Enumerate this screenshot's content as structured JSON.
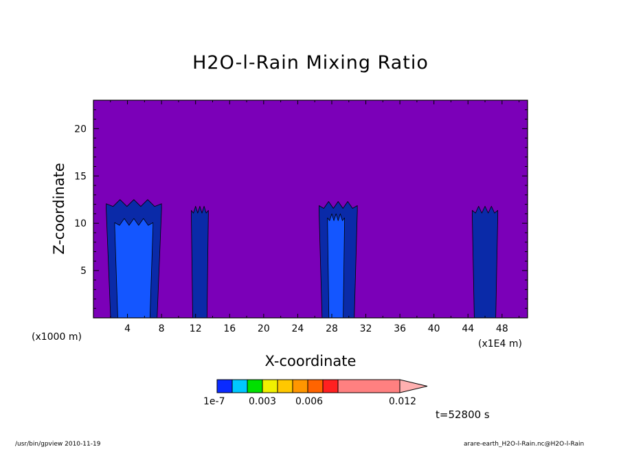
{
  "chart_data": {
    "type": "heatmap",
    "title": "H2O-l-Rain Mixing Ratio",
    "xlabel": "X-coordinate",
    "ylabel": "Z-coordinate",
    "x_unit_left": "(x1000 m)",
    "x_unit_right": "(x1E4 m)",
    "xlim": [
      0,
      51
    ],
    "ylim": [
      0,
      23
    ],
    "xticks": [
      "4",
      "8",
      "12",
      "16",
      "20",
      "24",
      "28",
      "32",
      "36",
      "40",
      "44",
      "48"
    ],
    "xtick_values": [
      4,
      8,
      12,
      16,
      20,
      24,
      28,
      32,
      36,
      40,
      44,
      48
    ],
    "yticks": [
      "5",
      "10",
      "15",
      "20"
    ],
    "ytick_values": [
      5,
      10,
      15,
      20
    ],
    "background_color": "#7b00b8",
    "levels": [
      {
        "min": "1e-7",
        "color": "#0a2aa8"
      },
      {
        "min": "0.003",
        "color": "#1456ff"
      }
    ],
    "cells": [
      {
        "x_range": [
          1.5,
          8
        ],
        "z_top": 12.5,
        "intensity": 1
      },
      {
        "x_range": [
          2.5,
          7
        ],
        "z_top": 10.5,
        "intensity": 2
      },
      {
        "x_range": [
          11.5,
          13.5
        ],
        "z_top": 11.8,
        "intensity": 1
      },
      {
        "x_range": [
          26.5,
          31
        ],
        "z_top": 12.3,
        "intensity": 1
      },
      {
        "x_range": [
          27.5,
          29.5
        ],
        "z_top": 11.0,
        "intensity": 2
      },
      {
        "x_range": [
          44.5,
          47.5
        ],
        "z_top": 11.8,
        "intensity": 1
      }
    ],
    "colorbar": {
      "colors": [
        "#0a2aff",
        "#00c8ff",
        "#00e000",
        "#f0f000",
        "#ffc800",
        "#ff9600",
        "#ff6400",
        "#ff2020",
        "#ff8080"
      ],
      "overflow_color": "#ffb0b0",
      "labels": [
        "1e-7",
        "0.003",
        "0.006",
        "0.012"
      ]
    },
    "time_label": "t=52800 s"
  },
  "footer": {
    "left": "/usr/bin/gpview 2010-11-19",
    "right": "arare-earth_H2O-l-Rain.nc@H2O-l-Rain"
  }
}
